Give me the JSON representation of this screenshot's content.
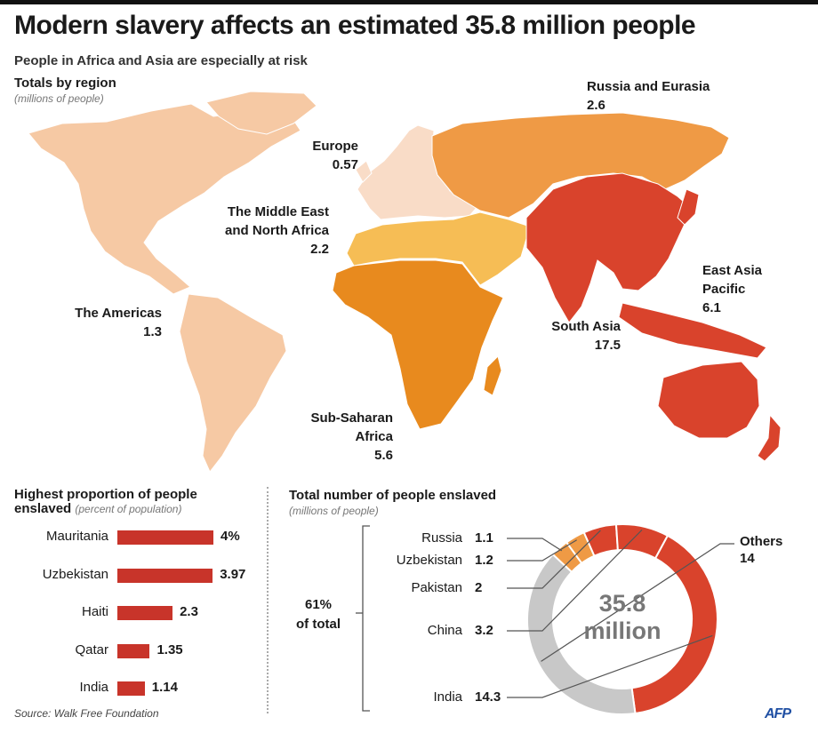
{
  "title": "Modern slavery affects an estimated 35.8 million people",
  "subtitle": "People in Africa and Asia are especially at risk",
  "map_section": {
    "title": "Totals by region",
    "subtitle": "(millions of people)",
    "regions": {
      "americas": {
        "name": "The Americas",
        "value": "1.3"
      },
      "europe": {
        "name": "Europe",
        "value": "0.57"
      },
      "russia": {
        "name": "Russia and Eurasia",
        "value": "2.6"
      },
      "mena_line1": "The Middle East",
      "mena_line2": "and North Africa",
      "mena_value": "2.2",
      "east_asia_line1": "East Asia",
      "east_asia_line2": "Pacific",
      "east_asia_value": "6.1",
      "south_asia": {
        "name": "South Asia",
        "value": "17.5"
      },
      "ssa_line1": "Sub-Saharan",
      "ssa_line2": "Africa",
      "ssa_value": "5.6"
    },
    "colors": {
      "americas": "#f6c9a4",
      "europe": "#f9dcc7",
      "russia": "#ef9a45",
      "mena": "#f6bd55",
      "ssa": "#e88a1e",
      "asia": "#d9432c"
    }
  },
  "proportion_section": {
    "title_line1": "Highest proportion of people",
    "title_line2": "enslaved",
    "subtitle": "(percent of population)"
  },
  "total_section": {
    "title": "Total number of people enslaved",
    "subtitle": "(millions of people)",
    "bracket_line1": "61%",
    "bracket_line2": "of total",
    "center_line1": "35.8",
    "center_line2": "million",
    "others_label": "Others",
    "others_value": "14"
  },
  "chart_data": [
    {
      "type": "bar",
      "title": "Highest proportion of people enslaved",
      "ylabel": "percent of population",
      "categories": [
        "Mauritania",
        "Uzbekistan",
        "Haiti",
        "Qatar",
        "India"
      ],
      "values": [
        4,
        3.97,
        2.3,
        1.35,
        1.14
      ],
      "value_labels": [
        "4%",
        "3.97",
        "2.3",
        "1.35",
        "1.14"
      ],
      "xlim": [
        0,
        4
      ],
      "color": "#c8342a"
    },
    {
      "type": "pie",
      "title": "Total number of people enslaved",
      "unit": "millions of people",
      "total": 35.8,
      "categories": [
        "Russia",
        "Uzbekistan",
        "Pakistan",
        "China",
        "India",
        "Others"
      ],
      "values": [
        1.1,
        1.2,
        2,
        3.2,
        14.3,
        14
      ],
      "value_labels": [
        "1.1",
        "1.2",
        "2",
        "3.2",
        "14.3",
        "14"
      ],
      "colors": [
        "#ef9a45",
        "#ef9a45",
        "#d9432c",
        "#d9432c",
        "#d9432c",
        "#c8c8c8"
      ]
    }
  ],
  "source": "Source: Walk Free Foundation",
  "logo": "AFP"
}
